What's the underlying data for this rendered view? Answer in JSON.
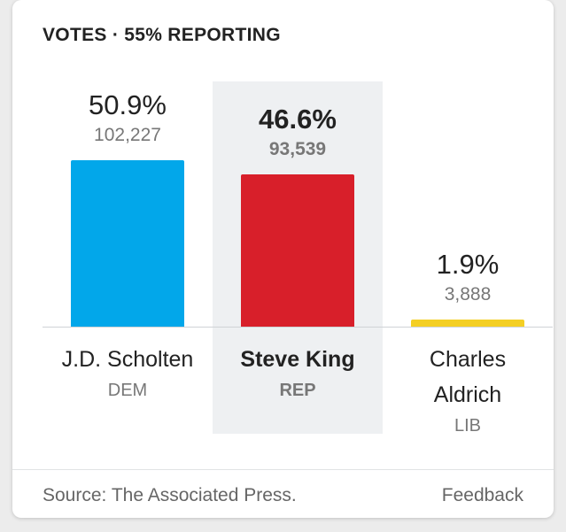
{
  "header": {
    "title": "VOTES · 55% REPORTING"
  },
  "footer": {
    "source": "Source: The Associated Press.",
    "feedback": "Feedback"
  },
  "chart_data": {
    "type": "bar",
    "title": "VOTES · 55% REPORTING",
    "categories": [
      "J.D. Scholten",
      "Steve King",
      "Charles Aldrich"
    ],
    "parties": [
      "DEM",
      "REP",
      "LIB"
    ],
    "percent_labels": [
      "50.9%",
      "46.6%",
      "1.9%"
    ],
    "vote_labels": [
      "102,227",
      "93,539",
      "3,888"
    ],
    "values": [
      50.9,
      46.6,
      1.9
    ],
    "colors": [
      "#02a7ea",
      "#d81f2a",
      "#f4cf24"
    ],
    "highlighted": 1
  }
}
